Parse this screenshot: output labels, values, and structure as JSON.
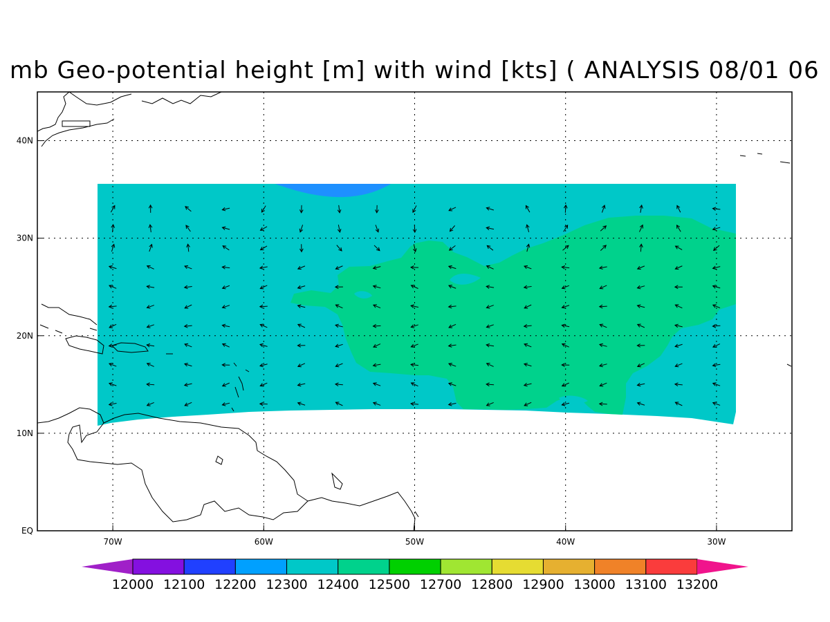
{
  "title": "mb Geo-potential height [m] with wind [kts] ( ANALYSIS 08/01 06",
  "axes": {
    "lon_labels": [
      "70W",
      "60W",
      "50W",
      "40W",
      "30W"
    ],
    "lat_labels": [
      "40N",
      "30N",
      "20N",
      "10N",
      "EQ"
    ],
    "lon_range": [
      -75,
      -25
    ],
    "lat_range": [
      0,
      45
    ],
    "grid": "dotted"
  },
  "colorbar": {
    "labels": [
      "12000",
      "12100",
      "12200",
      "12300",
      "12400",
      "12500",
      "12700",
      "12800",
      "12900",
      "13000",
      "13100",
      "13200"
    ],
    "colors": [
      "#a020c8",
      "#8410e0",
      "#2040ff",
      "#00a0ff",
      "#00c8c8",
      "#00d28c",
      "#00d000",
      "#a0e632",
      "#e6dc32",
      "#e6b030",
      "#f08228",
      "#fa3c3c",
      "#f0148c"
    ]
  },
  "fields": {
    "background_color": "#00c8c8",
    "green_region_color": "#00d28c",
    "blue_cap_color": "#1e90ff",
    "data_extent": {
      "lon": [
        -71,
        -29
      ],
      "lat": [
        11,
        35.5
      ]
    }
  },
  "wind": {
    "rows_lat": [
      33,
      31,
      29,
      27,
      25,
      23,
      21,
      19,
      17,
      15,
      13
    ],
    "cols_lon": [
      -70,
      -67.5,
      -65,
      -62.5,
      -60,
      -57.5,
      -55,
      -52.5,
      -50,
      -47.5,
      -45,
      -42.5,
      -40,
      -37.5,
      -35,
      -32.5,
      -30
    ]
  }
}
